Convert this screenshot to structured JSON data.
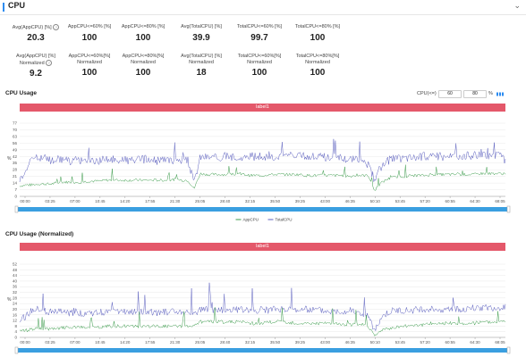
{
  "header": {
    "title": "CPU",
    "collapse_icon": "chevron-down-icon"
  },
  "metrics_row1": [
    {
      "label": "Avg(AppCPU) [%]",
      "value": "20.3",
      "info": true
    },
    {
      "label": "AppCPU<=60% [%]",
      "value": "100"
    },
    {
      "label": "AppCPU<=80% [%]",
      "value": "100"
    },
    {
      "label": "Avg(TotalCPU) [%]",
      "value": "39.9"
    },
    {
      "label": "TotalCPU<=60% [%]",
      "value": "99.7"
    },
    {
      "label": "TotalCPU<=80% [%]",
      "value": "100"
    }
  ],
  "metrics_row2": [
    {
      "label": "Avg(AppCPU) [%]",
      "label2": "Normalized",
      "value": "9.2",
      "info": true
    },
    {
      "label": "AppCPU<=60%[%]",
      "label2": "Normalized",
      "value": "100"
    },
    {
      "label": "AppCPU<=80%[%]",
      "label2": "Normalized",
      "value": "100"
    },
    {
      "label": "Avg(TotalCPU) [%]",
      "label2": "Normalized",
      "value": "18"
    },
    {
      "label": "TotalCPU<=60%[%]",
      "label2": "Normalized",
      "value": "100"
    },
    {
      "label": "TotalCPU<=80%[%]",
      "label2": "Normalized",
      "value": "100"
    }
  ],
  "threshold": {
    "label": "CPU(<=)",
    "value1": "60",
    "value2": "80",
    "unit": "%"
  },
  "chart_data": [
    {
      "type": "line",
      "title": "CPU Usage",
      "band_label": "label1",
      "ylabel": "%",
      "y_ticks": [
        "0",
        "7",
        "14",
        "21",
        "28",
        "35",
        "42",
        "49",
        "56",
        "63",
        "70",
        "77"
      ],
      "ylim": [
        0,
        77
      ],
      "x_ticks": [
        "00:00",
        "03:25",
        "07:00",
        "10:45",
        "14:20",
        "17:55",
        "21:30",
        "25:05",
        "28:40",
        "32:15",
        "35:50",
        "39:25",
        "43:00",
        "46:35",
        "50:10",
        "53:45",
        "57:20",
        "60:55",
        "64:30",
        "68:05"
      ],
      "series": [
        {
          "name": "AppCPU",
          "color": "#3a9b4a",
          "values": [
            11,
            12,
            12,
            13,
            13,
            13,
            14,
            15,
            15,
            15,
            15,
            16,
            16,
            16,
            17,
            17,
            17,
            17,
            17,
            17,
            17,
            17,
            17,
            17,
            17,
            18,
            17,
            17,
            8,
            24,
            23,
            23,
            23,
            23,
            23,
            23,
            23,
            22,
            22,
            22,
            23,
            23,
            23,
            23,
            23,
            23,
            22,
            22,
            22,
            22,
            22,
            22,
            22,
            21,
            22,
            22,
            22,
            6,
            14,
            18,
            20,
            21,
            21,
            22,
            22,
            22,
            23,
            23,
            23,
            23,
            23,
            23,
            23,
            23,
            24,
            24,
            24,
            24,
            24
          ]
        },
        {
          "name": "TotalCPU",
          "color": "#5b5fbf",
          "values": [
            18,
            28,
            40,
            42,
            40,
            38,
            39,
            39,
            37,
            38,
            37,
            38,
            37,
            38,
            38,
            39,
            38,
            38,
            38,
            38,
            39,
            38,
            37,
            38,
            38,
            38,
            38,
            38,
            14,
            42,
            42,
            41,
            41,
            42,
            41,
            42,
            42,
            42,
            41,
            42,
            41,
            42,
            42,
            43,
            42,
            42,
            42,
            42,
            42,
            41,
            41,
            40,
            40,
            40,
            39,
            36,
            33,
            17,
            31,
            37,
            40,
            40,
            41,
            41,
            42,
            42,
            42,
            42,
            42,
            42,
            43,
            43,
            43,
            43,
            43,
            43,
            44,
            43,
            38
          ]
        }
      ],
      "legend": [
        "AppCPU",
        "TotalCPU"
      ]
    },
    {
      "type": "line",
      "title": "CPU Usage (Normalized)",
      "band_label": "label1",
      "ylabel": "%",
      "y_ticks": [
        "0",
        "4",
        "8",
        "12",
        "16",
        "20",
        "24",
        "28",
        "32",
        "36",
        "40",
        "44",
        "48",
        "52"
      ],
      "ylim": [
        0,
        52
      ],
      "x_ticks": [
        "00:00",
        "03:25",
        "07:00",
        "10:45",
        "14:20",
        "17:55",
        "21:30",
        "25:05",
        "28:40",
        "32:15",
        "35:50",
        "39:25",
        "43:00",
        "46:35",
        "50:10",
        "53:45",
        "57:20",
        "60:55",
        "64:30",
        "68:05"
      ],
      "series": [
        {
          "name": "AppCPU",
          "values": [
            5,
            5,
            6,
            6,
            6,
            6,
            6,
            7,
            7,
            7,
            7,
            7,
            7,
            7,
            8,
            8,
            8,
            8,
            8,
            8,
            8,
            8,
            8,
            8,
            8,
            8,
            8,
            8,
            8,
            11,
            11,
            11,
            11,
            11,
            11,
            11,
            11,
            10,
            10,
            10,
            11,
            11,
            11,
            11,
            10,
            10,
            10,
            10,
            10,
            10,
            10,
            10,
            9,
            9,
            9,
            9,
            8,
            1,
            5,
            6,
            7,
            8,
            8,
            9,
            9,
            9,
            10,
            10,
            10,
            10,
            10,
            10,
            10,
            10,
            11,
            11,
            11,
            11,
            12
          ]
        },
        {
          "name": "TotalCPU",
          "values": [
            13,
            15,
            19,
            20,
            19,
            18,
            18,
            18,
            17,
            18,
            17,
            18,
            17,
            18,
            18,
            18,
            18,
            18,
            18,
            18,
            18,
            18,
            17,
            18,
            18,
            18,
            18,
            18,
            17,
            20,
            20,
            19,
            19,
            20,
            19,
            20,
            20,
            20,
            19,
            20,
            19,
            20,
            20,
            20,
            20,
            20,
            20,
            20,
            20,
            19,
            19,
            19,
            19,
            19,
            18,
            17,
            15,
            4,
            14,
            17,
            19,
            19,
            19,
            19,
            20,
            20,
            20,
            20,
            20,
            20,
            20,
            20,
            21,
            21,
            21,
            21,
            21,
            21,
            22
          ]
        }
      ]
    }
  ]
}
